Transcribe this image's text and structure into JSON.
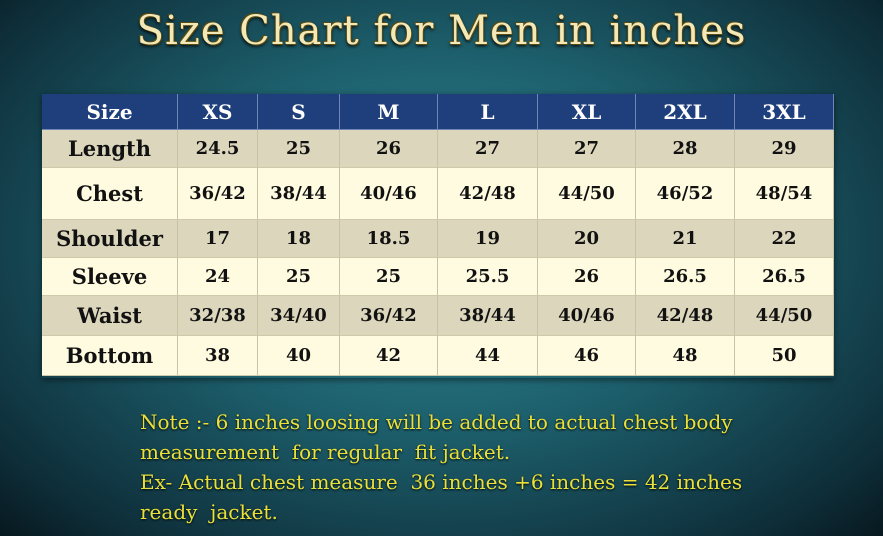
{
  "title": "Size Chart for Men in inches",
  "table": {
    "header": [
      "Size",
      "XS",
      "S",
      "M",
      "L",
      "XL",
      "2XL",
      "3XL"
    ],
    "rows": [
      [
        "Length",
        "24.5",
        "25",
        "26",
        "27",
        "27",
        "28",
        "29"
      ],
      [
        "Chest",
        "36/42",
        "38/44",
        "40/46",
        "42/48",
        "44/50",
        "46/52",
        "48/54"
      ],
      [
        "Shoulder",
        "17",
        "18",
        "18.5",
        "19",
        "20",
        "21",
        "22"
      ],
      [
        "Sleeve",
        "24",
        "25",
        "25",
        "25.5",
        "26",
        "26.5",
        "26.5"
      ],
      [
        "Waist",
        "32/38",
        "34/40",
        "36/42",
        "38/44",
        "40/46",
        "42/48",
        "44/50"
      ],
      [
        "Bottom",
        "38",
        "40",
        "42",
        "44",
        "46",
        "48",
        "50"
      ]
    ]
  },
  "note": [
    "Note :- 6 inches loosing will be added to actual chest body",
    "measurement  for regular  fit jacket.",
    "Ex- Actual chest measure  36 inches +6 inches = 42 inches",
    "ready  jacket."
  ]
}
